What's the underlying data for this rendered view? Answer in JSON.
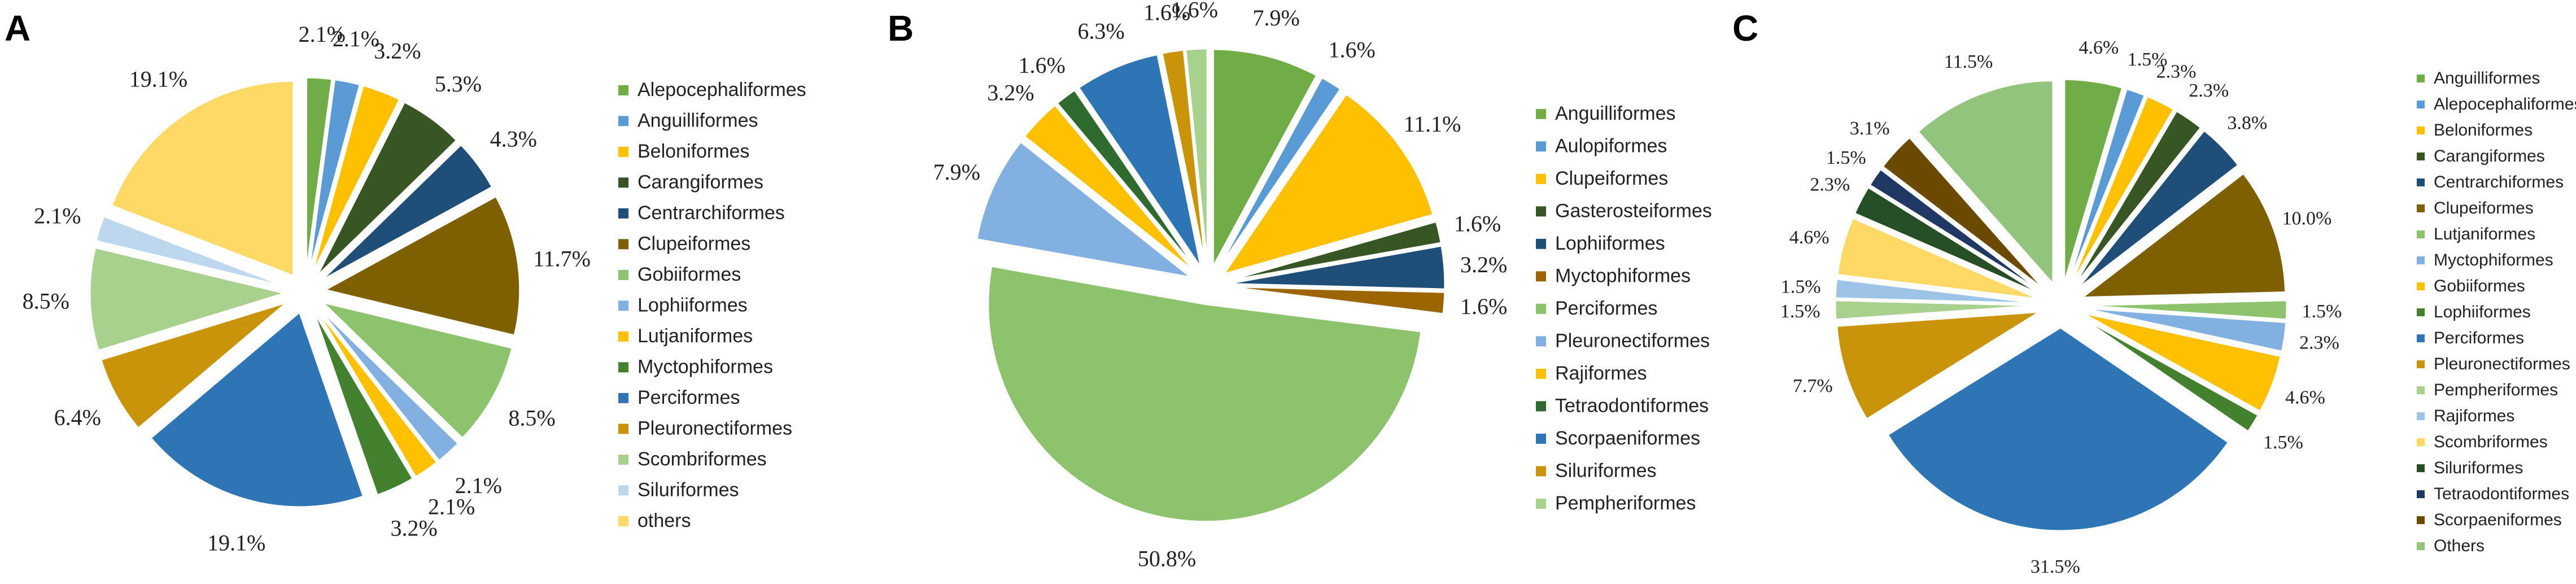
{
  "chart_data": [
    {
      "type": "pie",
      "panel_label": "A",
      "legend_position": "right",
      "slices": [
        {
          "label": "Alepocephaliformes",
          "value": 2.1,
          "value_label": "2.1%",
          "color": "#70ad47"
        },
        {
          "label": "Anguilliformes",
          "value": 2.1,
          "value_label": "2.1%",
          "color": "#5b9bd5"
        },
        {
          "label": "Beloniformes",
          "value": 3.2,
          "value_label": "3.2%",
          "color": "#ffc000"
        },
        {
          "label": "Carangiformes",
          "value": 5.3,
          "value_label": "5.3%",
          "color": "#375623"
        },
        {
          "label": "Centrarchiformes",
          "value": 4.3,
          "value_label": "4.3%",
          "color": "#1f4e79"
        },
        {
          "label": "Clupeiformes",
          "value": 11.7,
          "value_label": "11.7%",
          "color": "#7f6000"
        },
        {
          "label": "Gobiiformes",
          "value": 8.5,
          "value_label": "8.5%",
          "color": "#8dc36c"
        },
        {
          "label": "Lophiiformes",
          "value": 2.1,
          "value_label": "2.1%",
          "color": "#82b0e0"
        },
        {
          "label": "Lutjaniformes",
          "value": 2.1,
          "value_label": "2.1%",
          "color": "#ffc000"
        },
        {
          "label": "Myctophiformes",
          "value": 3.2,
          "value_label": "3.2%",
          "color": "#43812f"
        },
        {
          "label": "Perciformes",
          "value": 19.1,
          "value_label": "19.1%",
          "color": "#2e75b6"
        },
        {
          "label": "Pleuronectiformes",
          "value": 6.4,
          "value_label": "6.4%",
          "color": "#c9940a"
        },
        {
          "label": "Scombriformes",
          "value": 8.5,
          "value_label": "8.5%",
          "color": "#a9d18e"
        },
        {
          "label": "Siluriformes",
          "value": 2.1,
          "value_label": "2.1%",
          "color": "#bdd7ee"
        },
        {
          "label": "others",
          "value": 19.1,
          "value_label": "19.1%",
          "color": "#ffd966"
        }
      ]
    },
    {
      "type": "pie",
      "panel_label": "B",
      "legend_position": "right",
      "slices": [
        {
          "label": "Anguilliformes",
          "value": 7.9,
          "value_label": "7.9%",
          "color": "#70ad47"
        },
        {
          "label": "Aulopiformes",
          "value": 1.6,
          "value_label": "1.6%",
          "color": "#5b9bd5"
        },
        {
          "label": "Clupeiformes",
          "value": 11.1,
          "value_label": "11.1%",
          "color": "#ffc000"
        },
        {
          "label": "Gasterosteiformes",
          "value": 1.6,
          "value_label": "1.6%",
          "color": "#375623"
        },
        {
          "label": "Lophiiformes",
          "value": 3.2,
          "value_label": "3.2%",
          "color": "#1f4e79"
        },
        {
          "label": "Myctophiformes",
          "value": 1.6,
          "value_label": "1.6%",
          "color": "#9c6500"
        },
        {
          "label": "Perciformes",
          "value": 50.8,
          "value_label": "50.8%",
          "color": "#8dc36c"
        },
        {
          "label": "Pleuronectiformes",
          "value": 7.9,
          "value_label": "7.9%",
          "color": "#82b0e0"
        },
        {
          "label": "Rajiformes",
          "value": 3.2,
          "value_label": "3.2%",
          "color": "#ffc000"
        },
        {
          "label": "Tetraodontiformes",
          "value": 1.6,
          "value_label": "1.6%",
          "color": "#2f6b2f"
        },
        {
          "label": "Scorpaeniformes",
          "value": 6.3,
          "value_label": "6.3%",
          "color": "#2e75b6"
        },
        {
          "label": "Siluriformes",
          "value": 1.6,
          "value_label": "1.6%",
          "color": "#c9940a"
        },
        {
          "label": "Pempheriformes",
          "value": 1.6,
          "value_label": "1.6%",
          "color": "#a9d18e"
        }
      ]
    },
    {
      "type": "pie",
      "panel_label": "C",
      "legend_position": "right",
      "slices": [
        {
          "label": "Anguilliformes",
          "value": 4.6,
          "value_label": "4.6%",
          "color": "#70ad47"
        },
        {
          "label": "Alepocephaliformes",
          "value": 1.5,
          "value_label": "1.5%",
          "color": "#5b9bd5"
        },
        {
          "label": "Beloniformes",
          "value": 2.3,
          "value_label": "2.3%",
          "color": "#ffc000"
        },
        {
          "label": "Carangiformes",
          "value": 2.3,
          "value_label": "2.3%",
          "color": "#375623"
        },
        {
          "label": "Centrarchiformes",
          "value": 3.8,
          "value_label": "3.8%",
          "color": "#1f4e79"
        },
        {
          "label": "Clupeiformes",
          "value": 10.0,
          "value_label": "10.0%",
          "color": "#7f6000"
        },
        {
          "label": "Lutjaniformes",
          "value": 1.5,
          "value_label": "1.5%",
          "color": "#8dc36c"
        },
        {
          "label": "Myctophiformes",
          "value": 2.3,
          "value_label": "2.3%",
          "color": "#82b0e0"
        },
        {
          "label": "Gobiiformes",
          "value": 4.6,
          "value_label": "4.6%",
          "color": "#ffc000"
        },
        {
          "label": "Lophiiformes",
          "value": 1.5,
          "value_label": "1.5%",
          "color": "#43812f"
        },
        {
          "label": "Perciformes",
          "value": 31.5,
          "value_label": "31.5%",
          "color": "#2e75b6"
        },
        {
          "label": "Pleuronectiformes",
          "value": 7.7,
          "value_label": "7.7%",
          "color": "#c9940a"
        },
        {
          "label": "Pempheriformes",
          "value": 1.5,
          "value_label": "1.5%",
          "color": "#a9d18e"
        },
        {
          "label": "Rajiformes",
          "value": 1.5,
          "value_label": "1.5%",
          "color": "#9dc3e6"
        },
        {
          "label": "Scombriformes",
          "value": 4.6,
          "value_label": "4.6%",
          "color": "#ffd966"
        },
        {
          "label": "Siluriformes",
          "value": 2.3,
          "value_label": "2.3%",
          "color": "#264f26"
        },
        {
          "label": "Tetraodontiformes",
          "value": 1.5,
          "value_label": "1.5%",
          "color": "#1f3864"
        },
        {
          "label": "Scorpaeniformes",
          "value": 3.1,
          "value_label": "3.1%",
          "color": "#6b4a00"
        },
        {
          "label": "Others",
          "value": 11.5,
          "value_label": "11.5%",
          "color": "#93c47d"
        }
      ]
    }
  ]
}
